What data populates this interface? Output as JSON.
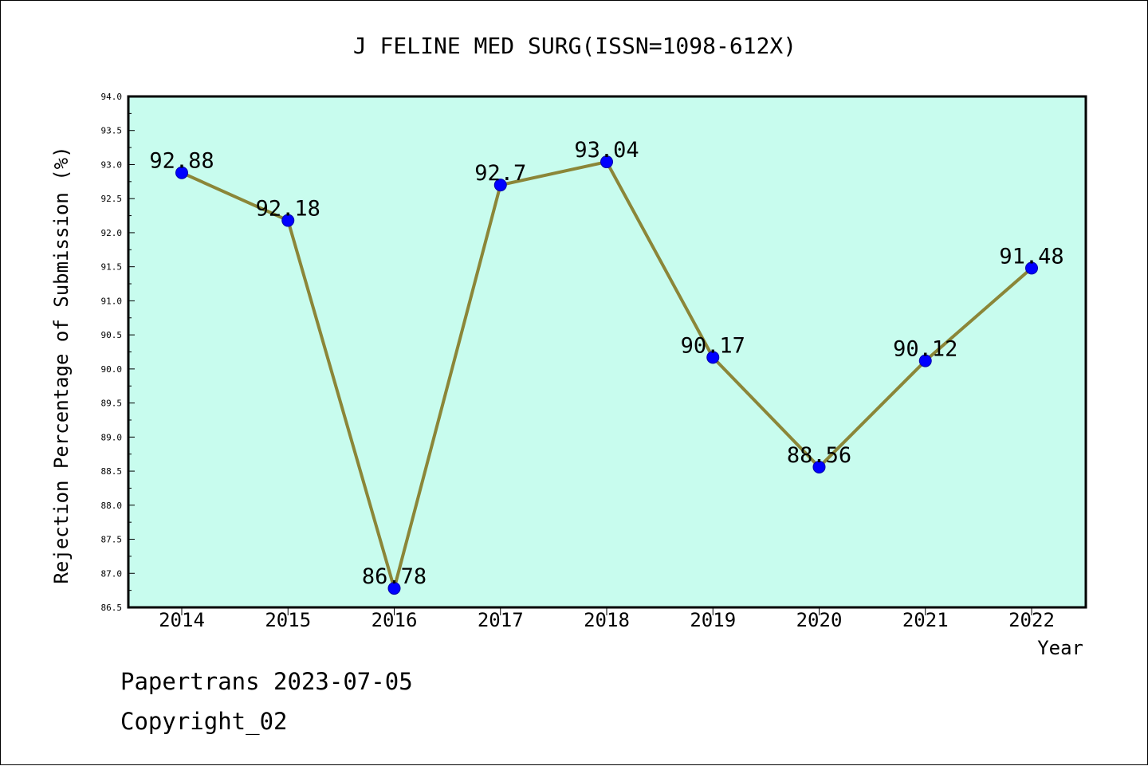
{
  "chart_data": {
    "type": "line",
    "title": "J FELINE MED SURG(ISSN=1098-612X)",
    "xlabel": "Year",
    "ylabel": "Rejection Percentage of Submission (%)",
    "categories": [
      "2014",
      "2015",
      "2016",
      "2017",
      "2018",
      "2019",
      "2020",
      "2021",
      "2022"
    ],
    "values": [
      92.88,
      92.18,
      86.78,
      92.7,
      93.04,
      90.17,
      88.56,
      90.12,
      91.48
    ],
    "data_labels": [
      "92.88",
      "92.18",
      "86.78",
      "92.7",
      "93.04",
      "90.17",
      "88.56",
      "90.12",
      "91.48"
    ],
    "ylim": [
      86.5,
      94.0
    ],
    "yticks": [
      "86.5",
      "87.0",
      "87.5",
      "88.0",
      "88.5",
      "89.0",
      "89.5",
      "90.0",
      "90.5",
      "91.0",
      "91.5",
      "92.0",
      "92.5",
      "93.0",
      "93.5",
      "94.0"
    ],
    "grid": false,
    "colors": {
      "plot_background": "#c8fcee",
      "line": "#8b8638",
      "marker": "#0000ff"
    }
  },
  "footer": {
    "line1": "Papertrans 2023-07-05",
    "line2": "Copyright_02"
  }
}
